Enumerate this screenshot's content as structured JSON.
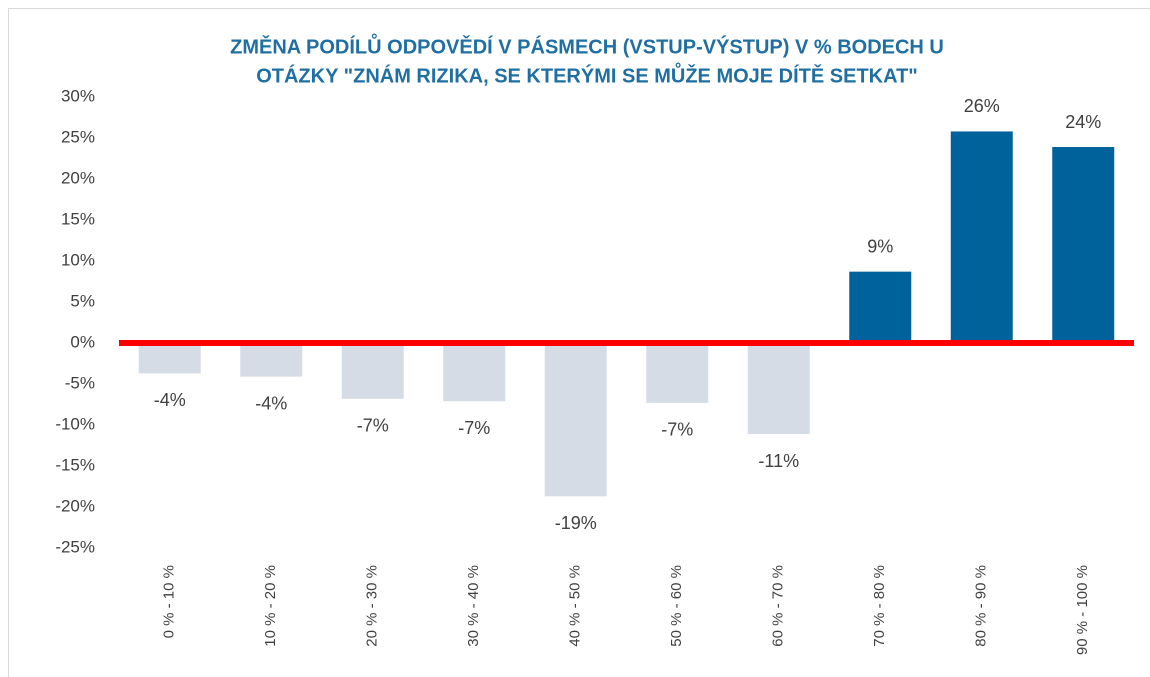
{
  "chart_data": {
    "type": "bar",
    "title": [
      "ZMĚNA PODÍLŮ ODPOVĚDÍ V PÁSMECH (VSTUP-VÝSTUP) V % BODECH U",
      "OTÁZKY \"ZNÁM RIZIKA, SE KTERÝMI SE MŮŽE MOJE DÍTĚ SETKAT\""
    ],
    "categories": [
      "0 % - 10 %",
      "10 % - 20 %",
      "20 % - 30 %",
      "30 % - 40 %",
      "40 % - 50 %",
      "50 % - 60 %",
      "60 % - 70 %",
      "70 % - 80 %",
      "80 % - 90 %",
      "90 % - 100 %"
    ],
    "values": [
      -3.7,
      -4.1,
      -6.8,
      -7.1,
      -18.7,
      -7.3,
      -11.1,
      8.7,
      25.8,
      23.9
    ],
    "value_labels": [
      "-4%",
      "-4%",
      "-7%",
      "-7%",
      "-19%",
      "-7%",
      "-11%",
      "9%",
      "26%",
      "24%"
    ],
    "positive_color": "#00629b",
    "negative_color": "#d6dce5",
    "zero_line_color": "#ff0000",
    "ylim": [
      -25,
      30
    ],
    "yticks": [
      {
        "value": -25,
        "label": "-25%"
      },
      {
        "value": -20,
        "label": "-20%"
      },
      {
        "value": -15,
        "label": "-15%"
      },
      {
        "value": -10,
        "label": "-10%"
      },
      {
        "value": -5,
        "label": "-5%"
      },
      {
        "value": 0,
        "label": "0%"
      },
      {
        "value": 5,
        "label": "5%"
      },
      {
        "value": 10,
        "label": "10%"
      },
      {
        "value": 15,
        "label": "15%"
      },
      {
        "value": 20,
        "label": "20%"
      },
      {
        "value": 25,
        "label": "25%"
      },
      {
        "value": 30,
        "label": "30%"
      }
    ],
    "grid": false
  }
}
